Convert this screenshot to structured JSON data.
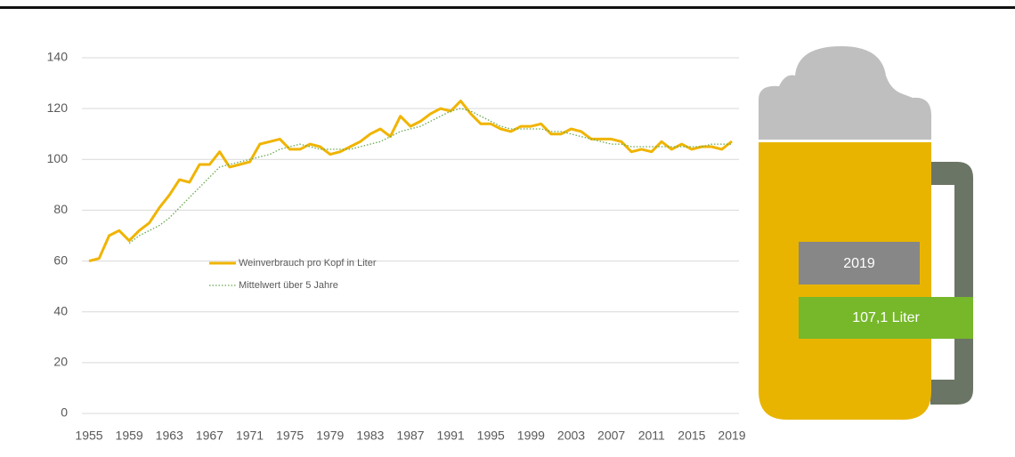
{
  "chart_data": {
    "type": "line",
    "x": [
      1955,
      1956,
      1957,
      1958,
      1959,
      1960,
      1961,
      1962,
      1963,
      1964,
      1965,
      1966,
      1967,
      1968,
      1969,
      1970,
      1971,
      1972,
      1973,
      1974,
      1975,
      1976,
      1977,
      1978,
      1979,
      1980,
      1981,
      1982,
      1983,
      1984,
      1985,
      1986,
      1987,
      1988,
      1989,
      1990,
      1991,
      1992,
      1993,
      1994,
      1995,
      1996,
      1997,
      1998,
      1999,
      2000,
      2001,
      2002,
      2003,
      2004,
      2005,
      2006,
      2007,
      2008,
      2009,
      2010,
      2011,
      2012,
      2013,
      2014,
      2015,
      2016,
      2017,
      2018,
      2019
    ],
    "series": [
      {
        "name": "Weinverbrauch pro Kopf in Liter",
        "color": "#f0b400",
        "values": [
          60,
          61,
          70,
          72,
          68,
          72,
          75,
          81,
          86,
          92,
          91,
          98,
          98,
          103,
          97,
          98,
          99,
          106,
          107,
          108,
          104,
          104,
          106,
          105,
          102,
          103,
          105,
          107,
          110,
          112,
          109,
          117,
          113,
          115,
          118,
          120,
          119,
          123,
          118,
          114,
          114,
          112,
          111,
          113,
          113,
          114,
          110,
          110,
          112,
          111,
          108,
          108,
          108,
          107,
          103,
          104,
          103,
          107,
          104,
          106,
          104,
          105,
          105,
          104,
          107.1
        ],
        "value_labels": [
          null,
          null,
          null,
          null,
          null,
          null,
          null,
          null,
          null,
          null,
          null,
          null,
          null,
          null,
          null,
          null,
          null,
          null,
          null,
          null,
          null,
          null,
          null,
          null,
          null,
          null,
          null,
          null,
          null,
          null,
          null,
          null,
          null,
          null,
          null,
          null,
          null,
          null,
          null,
          null,
          null,
          null,
          null,
          null,
          null,
          null,
          null,
          null,
          null,
          null,
          null,
          null,
          null,
          null,
          null,
          null,
          null,
          null,
          null,
          null,
          null,
          null,
          null,
          null,
          "107,1 Liter"
        ]
      },
      {
        "name": "Mittelwert über 5 Jahre",
        "color": "#6aa84f",
        "dotted": true,
        "values": [
          null,
          null,
          null,
          null,
          67,
          70,
          72,
          74,
          77,
          81,
          85,
          89,
          93,
          97,
          98,
          99,
          100,
          101,
          102,
          104,
          105,
          106,
          105,
          104,
          104,
          104,
          104,
          105,
          106,
          107,
          109,
          111,
          112,
          113,
          115,
          117,
          119,
          120,
          119,
          117,
          115,
          113,
          112,
          112,
          112,
          112,
          111,
          111,
          110,
          109,
          108,
          107,
          106,
          106,
          105,
          105,
          105,
          105,
          105,
          105,
          105,
          105,
          106,
          106,
          106
        ]
      }
    ],
    "xlim": [
      1955,
      2019
    ],
    "xticks": [
      1955,
      1959,
      1963,
      1967,
      1971,
      1975,
      1979,
      1983,
      1987,
      1991,
      1995,
      1999,
      2003,
      2007,
      2011,
      2015,
      2019
    ],
    "ylim": [
      0,
      140
    ],
    "yticks": [
      0,
      20,
      40,
      60,
      80,
      100,
      120,
      140
    ],
    "grid": true
  }
}
